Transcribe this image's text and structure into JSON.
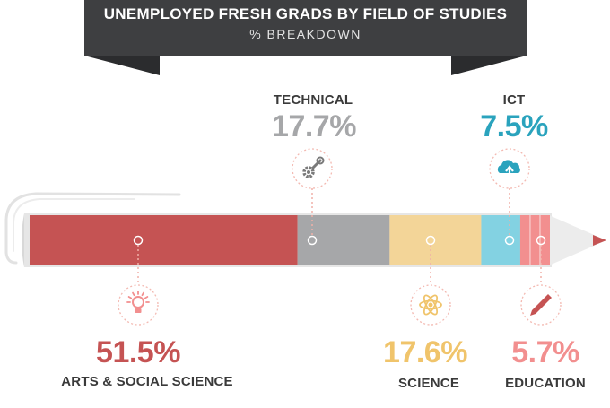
{
  "header": {
    "title": "UNEMPLOYED FRESH GRADS BY FIELD OF STUDIES",
    "subtitle": "% BREAKDOWN"
  },
  "chart_data": {
    "type": "bar",
    "stacked": true,
    "orientation": "horizontal",
    "categories": [
      "ARTS & SOCIAL SCIENCE",
      "TECHNICAL",
      "SCIENCE",
      "ICT",
      "EDUCATION"
    ],
    "values": [
      51.5,
      17.7,
      17.6,
      7.5,
      5.7
    ],
    "value_labels": [
      "51.5%",
      "17.7%",
      "17.6%",
      "7.5%",
      "5.7%"
    ],
    "units": "%",
    "colors": [
      "#c55353",
      "#a6a7a9",
      "#f3d598",
      "#83d2e2",
      "#f28f8f"
    ],
    "icons": [
      "lightbulb-icon",
      "gear-wrench-icon",
      "atom-icon",
      "cloud-upload-icon",
      "pencil-icon"
    ],
    "label_positions": [
      "bottom",
      "top",
      "bottom",
      "top",
      "bottom"
    ]
  }
}
